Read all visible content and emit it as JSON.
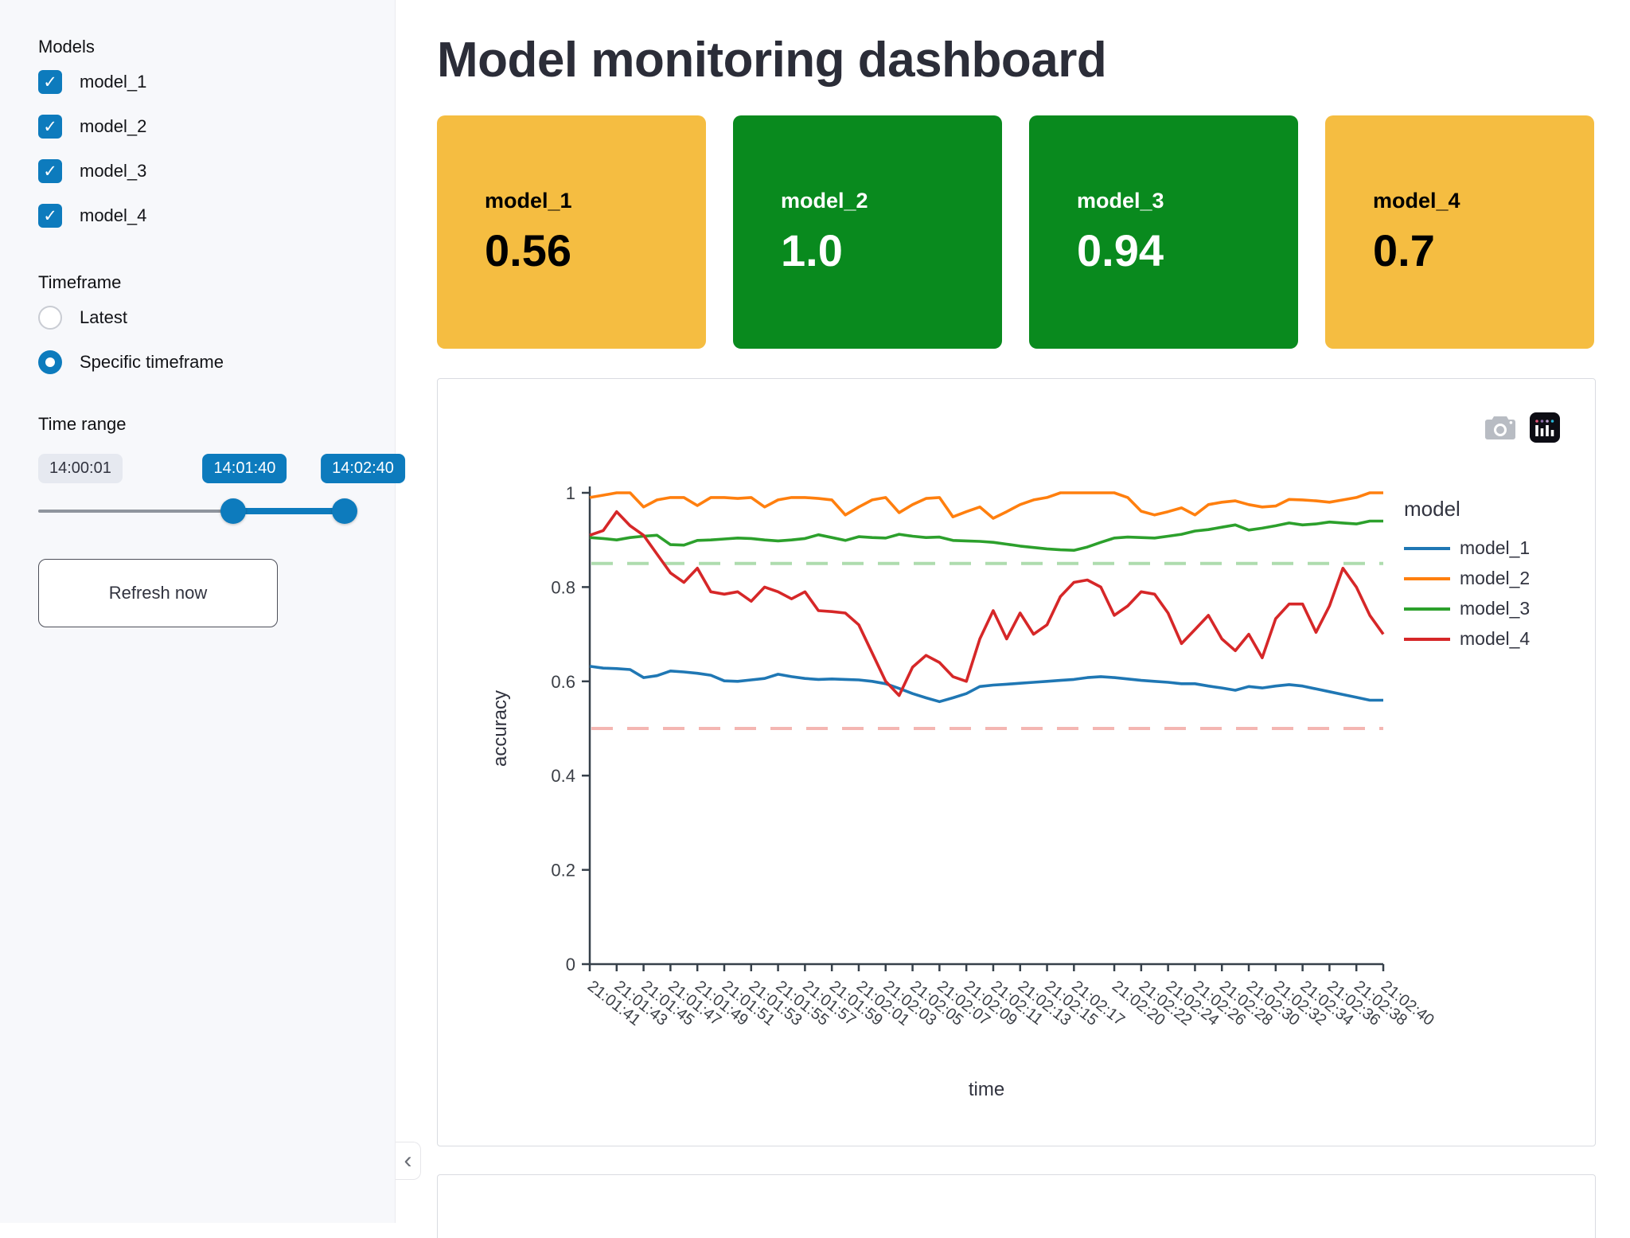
{
  "sidebar": {
    "models_label": "Models",
    "models": [
      {
        "label": "model_1",
        "checked": true
      },
      {
        "label": "model_2",
        "checked": true
      },
      {
        "label": "model_3",
        "checked": true
      },
      {
        "label": "model_4",
        "checked": true
      }
    ],
    "timeframe_label": "Timeframe",
    "timeframe_options": [
      {
        "label": "Latest",
        "selected": false
      },
      {
        "label": "Specific timeframe",
        "selected": true
      }
    ],
    "time_range_label": "Time range",
    "slider": {
      "min_label": "14:00:01",
      "start_label": "14:01:40",
      "end_label": "14:02:40",
      "start_pct": 63.6,
      "end_pct": 100
    },
    "refresh_button_label": "Refresh now",
    "icons": {
      "collapse_chevron": "‹"
    }
  },
  "header": {
    "title": "Model monitoring dashboard"
  },
  "metric_cards": [
    {
      "label": "model_1",
      "value": "0.56",
      "bg": "#f5bd41",
      "text": "#000000"
    },
    {
      "label": "model_2",
      "value": "1.0",
      "bg": "#098a1e",
      "text": "#ffffff"
    },
    {
      "label": "model_3",
      "value": "0.94",
      "bg": "#098a1e",
      "text": "#ffffff"
    },
    {
      "label": "model_4",
      "value": "0.7",
      "bg": "#f5bd41",
      "text": "#000000"
    }
  ],
  "chart_data": {
    "type": "line",
    "title": "",
    "xlabel": "time",
    "ylabel": "accuracy",
    "ylim": [
      0,
      1
    ],
    "yticks": [
      0,
      0.2,
      0.4,
      0.6,
      0.8,
      1
    ],
    "legend_title": "model",
    "legend_position": "right",
    "grid": false,
    "xtick_angle": 38,
    "x": [
      "21:01:41",
      "21:01:42",
      "21:01:43",
      "21:01:44",
      "21:01:45",
      "21:01:46",
      "21:01:47",
      "21:01:48",
      "21:01:49",
      "21:01:50",
      "21:01:51",
      "21:01:52",
      "21:01:53",
      "21:01:54",
      "21:01:55",
      "21:01:56",
      "21:01:57",
      "21:01:58",
      "21:01:59",
      "21:02:00",
      "21:02:01",
      "21:02:02",
      "21:02:03",
      "21:02:04",
      "21:02:05",
      "21:02:06",
      "21:02:07",
      "21:02:08",
      "21:02:09",
      "21:02:10",
      "21:02:11",
      "21:02:12",
      "21:02:13",
      "21:02:14",
      "21:02:15",
      "21:02:16",
      "21:02:17",
      "21:02:18",
      "21:02:19",
      "21:02:20",
      "21:02:21",
      "21:02:22",
      "21:02:23",
      "21:02:24",
      "21:02:25",
      "21:02:26",
      "21:02:27",
      "21:02:28",
      "21:02:29",
      "21:02:30",
      "21:02:31",
      "21:02:32",
      "21:02:33",
      "21:02:34",
      "21:02:35",
      "21:02:36",
      "21:02:37",
      "21:02:38",
      "21:02:39",
      "21:02:40"
    ],
    "xtick_labels": [
      "21:01:41",
      "21:01:43",
      "21:01:45",
      "21:01:47",
      "21:01:49",
      "21:01:51",
      "21:01:53",
      "21:01:55",
      "21:01:57",
      "21:01:59",
      "21:02:01",
      "21:02:03",
      "21:02:05",
      "21:02:07",
      "21:02:09",
      "21:02:11",
      "21:02:13",
      "21:02:15",
      "21:02:17",
      "21:02:20",
      "21:02:22",
      "21:02:24",
      "21:02:26",
      "21:02:28",
      "21:02:30",
      "21:02:32",
      "21:02:34",
      "21:02:36",
      "21:02:38",
      "21:02:40"
    ],
    "series": [
      {
        "name": "model_1",
        "color": "#1f77b4",
        "values": [
          0.632,
          0.628,
          0.627,
          0.625,
          0.608,
          0.612,
          0.622,
          0.62,
          0.617,
          0.613,
          0.601,
          0.6,
          0.603,
          0.606,
          0.615,
          0.61,
          0.606,
          0.604,
          0.605,
          0.604,
          0.603,
          0.6,
          0.595,
          0.585,
          0.574,
          0.565,
          0.557,
          0.565,
          0.574,
          0.589,
          0.592,
          0.594,
          0.596,
          0.598,
          0.6,
          0.602,
          0.604,
          0.608,
          0.61,
          0.608,
          0.605,
          0.602,
          0.6,
          0.598,
          0.595,
          0.595,
          0.59,
          0.586,
          0.581,
          0.589,
          0.586,
          0.59,
          0.593,
          0.59,
          0.584,
          0.578,
          0.572,
          0.566,
          0.56,
          0.56
        ]
      },
      {
        "name": "model_2",
        "color": "#ff7f0e",
        "values": [
          0.99,
          0.995,
          1.0,
          1.0,
          0.97,
          0.985,
          0.99,
          0.99,
          0.973,
          0.99,
          0.99,
          0.988,
          0.99,
          0.97,
          0.985,
          0.99,
          0.99,
          0.988,
          0.985,
          0.953,
          0.97,
          0.985,
          0.99,
          0.958,
          0.975,
          0.988,
          0.99,
          0.949,
          0.96,
          0.97,
          0.946,
          0.96,
          0.975,
          0.985,
          0.99,
          1.0,
          1.0,
          1.0,
          1.0,
          1.0,
          0.99,
          0.961,
          0.953,
          0.96,
          0.968,
          0.953,
          0.975,
          0.98,
          0.983,
          0.975,
          0.97,
          0.972,
          0.986,
          0.985,
          0.983,
          0.98,
          0.985,
          0.99,
          1.0,
          1.0
        ]
      },
      {
        "name": "model_3",
        "color": "#2ca02c",
        "values": [
          0.905,
          0.903,
          0.9,
          0.905,
          0.908,
          0.91,
          0.89,
          0.889,
          0.899,
          0.9,
          0.902,
          0.904,
          0.903,
          0.9,
          0.898,
          0.9,
          0.903,
          0.911,
          0.905,
          0.899,
          0.907,
          0.905,
          0.904,
          0.912,
          0.908,
          0.905,
          0.906,
          0.899,
          0.898,
          0.897,
          0.895,
          0.891,
          0.887,
          0.884,
          0.881,
          0.879,
          0.878,
          0.885,
          0.895,
          0.904,
          0.906,
          0.905,
          0.904,
          0.908,
          0.912,
          0.919,
          0.922,
          0.927,
          0.932,
          0.921,
          0.925,
          0.93,
          0.936,
          0.932,
          0.934,
          0.938,
          0.936,
          0.934,
          0.94,
          0.94
        ]
      },
      {
        "name": "model_4",
        "color": "#d62728",
        "values": [
          0.91,
          0.92,
          0.96,
          0.93,
          0.91,
          0.87,
          0.83,
          0.81,
          0.84,
          0.79,
          0.785,
          0.79,
          0.77,
          0.8,
          0.79,
          0.775,
          0.79,
          0.75,
          0.748,
          0.745,
          0.72,
          0.66,
          0.6,
          0.57,
          0.63,
          0.655,
          0.64,
          0.61,
          0.6,
          0.69,
          0.75,
          0.69,
          0.745,
          0.7,
          0.72,
          0.78,
          0.81,
          0.815,
          0.8,
          0.74,
          0.76,
          0.79,
          0.785,
          0.745,
          0.68,
          0.71,
          0.74,
          0.69,
          0.665,
          0.7,
          0.65,
          0.733,
          0.764,
          0.764,
          0.704,
          0.76,
          0.84,
          0.8,
          0.74,
          0.7
        ]
      }
    ],
    "thresholds": [
      {
        "value": 0.85,
        "color": "#aedcae",
        "style": "dashed"
      },
      {
        "value": 0.5,
        "color": "#f4b6b2",
        "style": "dashed"
      }
    ],
    "modebar_icons": [
      "camera-icon",
      "plotly-logo-icon"
    ]
  }
}
